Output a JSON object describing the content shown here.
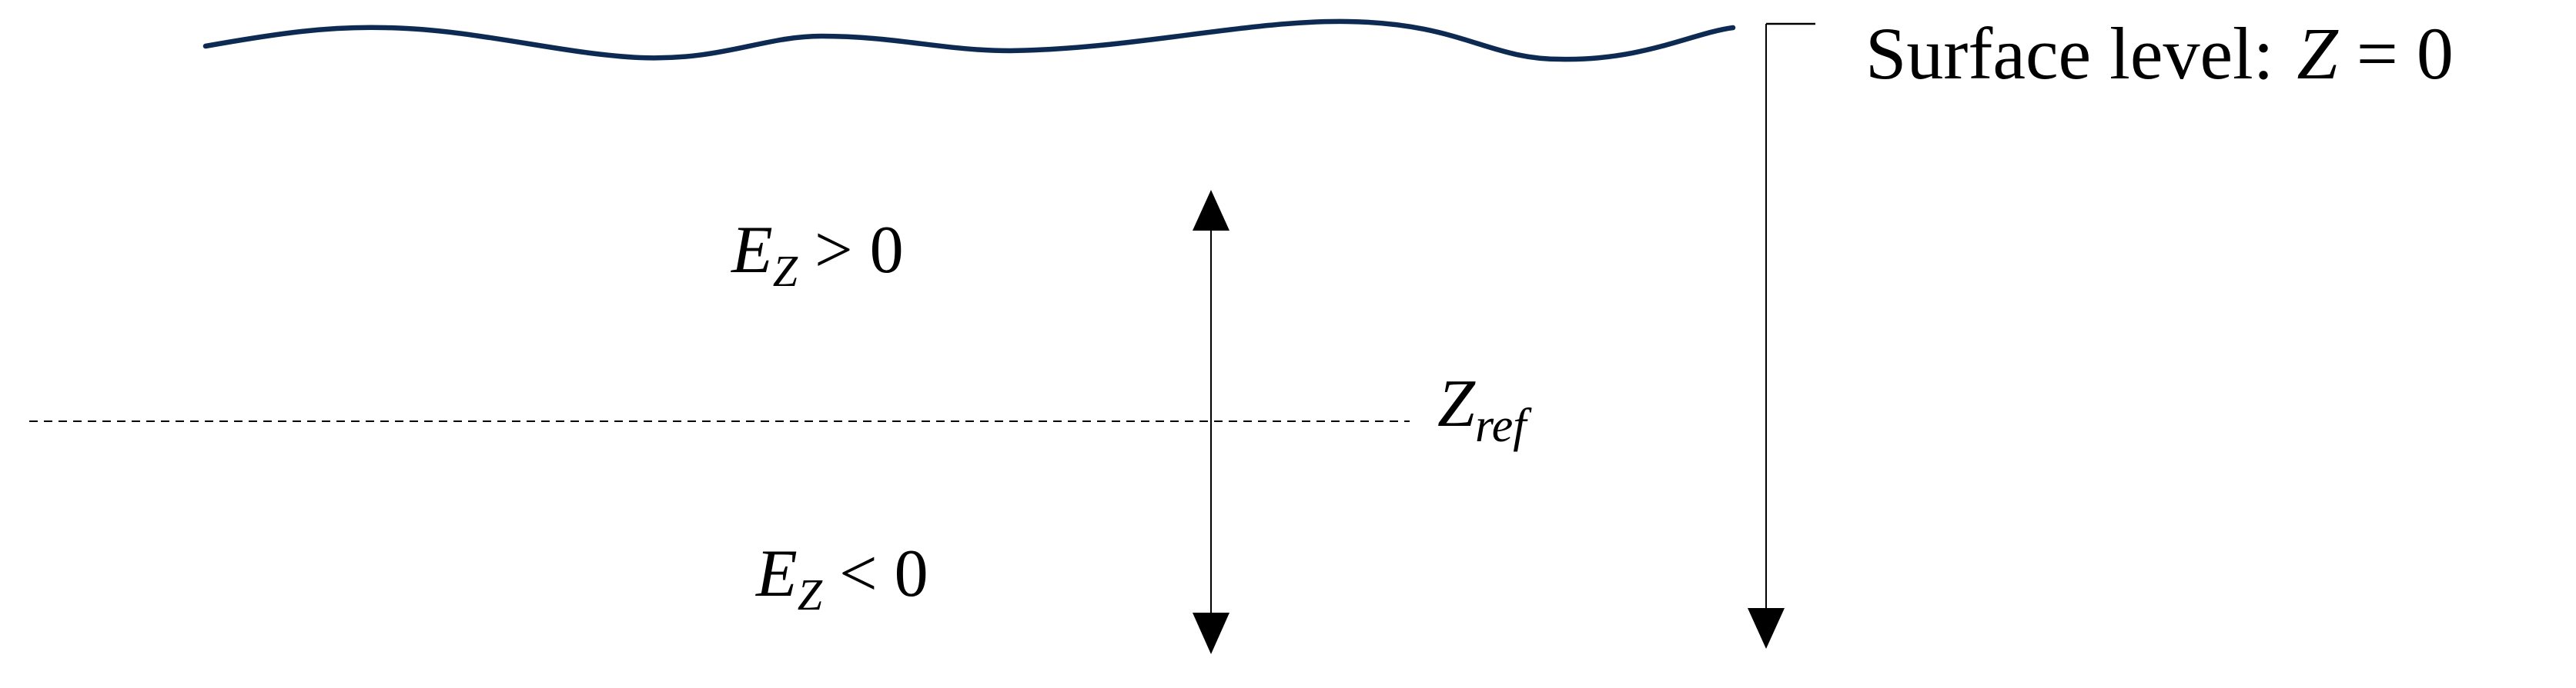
{
  "surface_label": "Surface level:",
  "surface_eq_var": "Z",
  "surface_eq_rest": " = 0",
  "upper_region": {
    "var": "E",
    "sub": "Z",
    "rel": " > 0"
  },
  "lower_region": {
    "var": "E",
    "sub": "Z",
    "rel": " < 0"
  },
  "reference": {
    "var": "Z",
    "sub": "ref"
  },
  "colors": {
    "water_surface": "#0d2b52",
    "lines": "#000000"
  }
}
